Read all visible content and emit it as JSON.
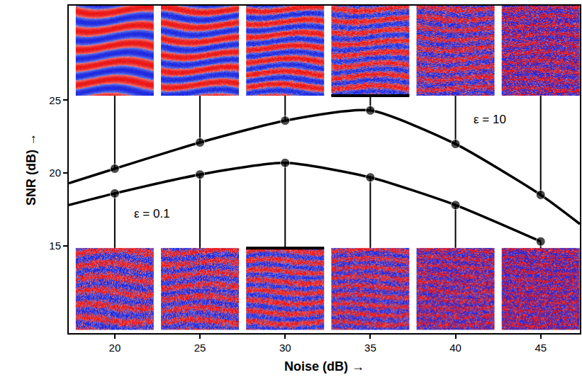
{
  "chart_data": {
    "type": "line",
    "x": [
      17.3,
      20,
      25,
      30,
      35,
      40,
      45,
      47.3
    ],
    "series": [
      {
        "color": "#000000",
        "marker": "circle",
        "line_style": "solid",
        "values": [
          19.3,
          20.3,
          22.1,
          23.6,
          24.3,
          22.0,
          18.5,
          16.5
        ]
      },
      {
        "color": "#000000",
        "marker": "circle",
        "line_style": "solid",
        "values": [
          17.8,
          18.6,
          19.9,
          20.7,
          19.7,
          17.8,
          15.3,
          null
        ]
      }
    ],
    "xlabel": "Noise (dB) →",
    "ylabel": "SNR (dB) →",
    "xlim": [
      17.3,
      47.3
    ],
    "ylim": [
      9,
      31.5
    ],
    "xticks": [
      20,
      25,
      30,
      35,
      40,
      45
    ],
    "yticks": [
      15,
      20,
      25
    ],
    "annotations": [
      {
        "text": "ε = 10",
        "x": 42,
        "y": 23.7
      },
      {
        "text": "ε = 0.1",
        "x": 22.2,
        "y": 17.2
      }
    ],
    "grid": false
  }
}
